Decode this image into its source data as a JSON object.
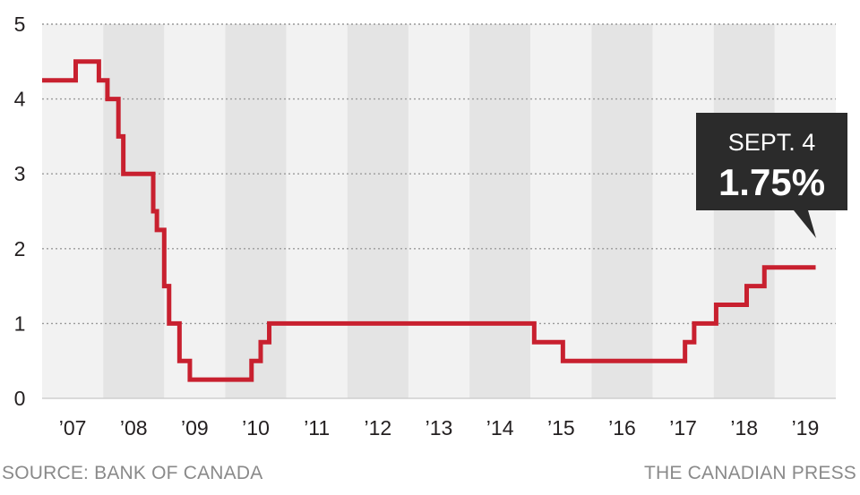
{
  "chart_data": {
    "type": "line",
    "step": true,
    "title": "",
    "xlabel": "",
    "ylabel": "",
    "ylim": [
      0,
      5
    ],
    "yticks": [
      "0",
      "1",
      "2",
      "3",
      "4",
      "5"
    ],
    "xlim": [
      2007.0,
      2020.0
    ],
    "xticks": [
      "’07",
      "’08",
      "’09",
      "’10",
      "’11",
      "’12",
      "’13",
      "’14",
      "’15",
      "’16",
      "’17",
      "’18",
      "’19"
    ],
    "grid": true,
    "alternating_year_bands": true,
    "series": [
      {
        "name": "",
        "color": "#c8202f",
        "points": [
          [
            2007.0,
            4.25
          ],
          [
            2007.55,
            4.5
          ],
          [
            2007.93,
            4.25
          ],
          [
            2008.07,
            4.0
          ],
          [
            2008.25,
            3.5
          ],
          [
            2008.33,
            3.0
          ],
          [
            2008.82,
            2.5
          ],
          [
            2008.88,
            2.25
          ],
          [
            2009.0,
            1.5
          ],
          [
            2009.08,
            1.0
          ],
          [
            2009.25,
            0.5
          ],
          [
            2009.42,
            0.25
          ],
          [
            2010.43,
            0.5
          ],
          [
            2010.58,
            0.75
          ],
          [
            2010.72,
            1.0
          ],
          [
            2015.06,
            0.75
          ],
          [
            2015.53,
            0.5
          ],
          [
            2017.53,
            0.75
          ],
          [
            2017.68,
            1.0
          ],
          [
            2018.04,
            1.25
          ],
          [
            2018.54,
            1.5
          ],
          [
            2018.83,
            1.75
          ],
          [
            2019.67,
            1.75
          ]
        ]
      }
    ],
    "annotation": {
      "label": "SEPT. 4",
      "value": "1.75%",
      "background": "#2b2b2b",
      "text_color": "#ffffff"
    }
  },
  "footer": {
    "source": "SOURCE: BANK OF CANADA",
    "credit": "THE CANADIAN PRESS"
  }
}
